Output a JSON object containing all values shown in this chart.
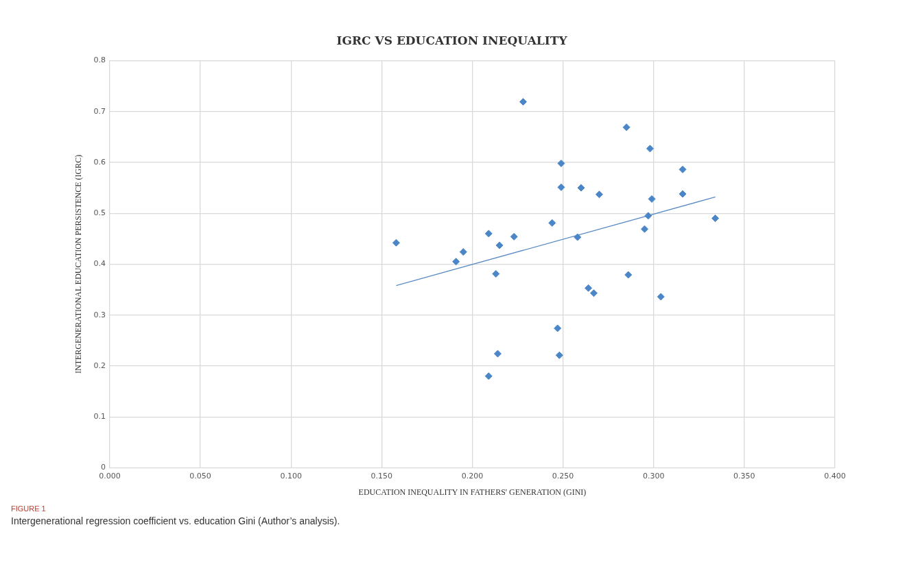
{
  "chart_data": {
    "type": "scatter",
    "title": "IGRC VS EDUCATION INEQUALITY",
    "xlabel": "EDUCATION INEQUALITY IN FATHERS' GENERATION (GINI)",
    "ylabel": "INTERGENERATIONAL EDUCATION PERSISTENCE (IGRC)",
    "annotations": [
      "FIGURE 1",
      "Intergenerational regression coefficient vs. education Gini (Author’s analysis)."
    ],
    "marker": "diamond",
    "grid": true,
    "legend": false,
    "xlim": [
      0,
      0.4
    ],
    "ylim": [
      0,
      0.8
    ],
    "xticks": [
      {
        "value": 0,
        "label": "0.000"
      },
      {
        "value": 0.05,
        "label": "0.050"
      },
      {
        "value": 0.1,
        "label": "0.100"
      },
      {
        "value": 0.15,
        "label": "0.150"
      },
      {
        "value": 0.2,
        "label": "0.200"
      },
      {
        "value": 0.25,
        "label": "0.250"
      },
      {
        "value": 0.3,
        "label": "0.300"
      },
      {
        "value": 0.35,
        "label": "0.350"
      },
      {
        "value": 0.4,
        "label": "0.400"
      }
    ],
    "yticks": [
      0,
      0.1,
      0.2,
      0.3,
      0.4,
      0.5,
      0.6,
      0.7,
      0.8
    ],
    "series": [
      {
        "type": "scatter",
        "color": "#4a86c8",
        "x": [
          0.158,
          0.228,
          0.249,
          0.249,
          0.26,
          0.27,
          0.244,
          0.209,
          0.223,
          0.215,
          0.258,
          0.195,
          0.191,
          0.213,
          0.285,
          0.298,
          0.316,
          0.299,
          0.316,
          0.297,
          0.295,
          0.334,
          0.286,
          0.304,
          0.264,
          0.267,
          0.247,
          0.214,
          0.248,
          0.209
        ],
        "values": [
          0.442,
          0.719,
          0.598,
          0.551,
          0.55,
          0.537,
          0.481,
          0.46,
          0.454,
          0.437,
          0.453,
          0.424,
          0.405,
          0.381,
          0.669,
          0.627,
          0.586,
          0.528,
          0.538,
          0.495,
          0.469,
          0.49,
          0.379,
          0.336,
          0.353,
          0.343,
          0.274,
          0.224,
          0.221,
          0.18
        ]
      },
      {
        "type": "line",
        "marker": "none",
        "color": "#5b8cc4",
        "x": [
          0.158,
          0.334
        ],
        "values": [
          0.358,
          0.532
        ]
      }
    ]
  }
}
